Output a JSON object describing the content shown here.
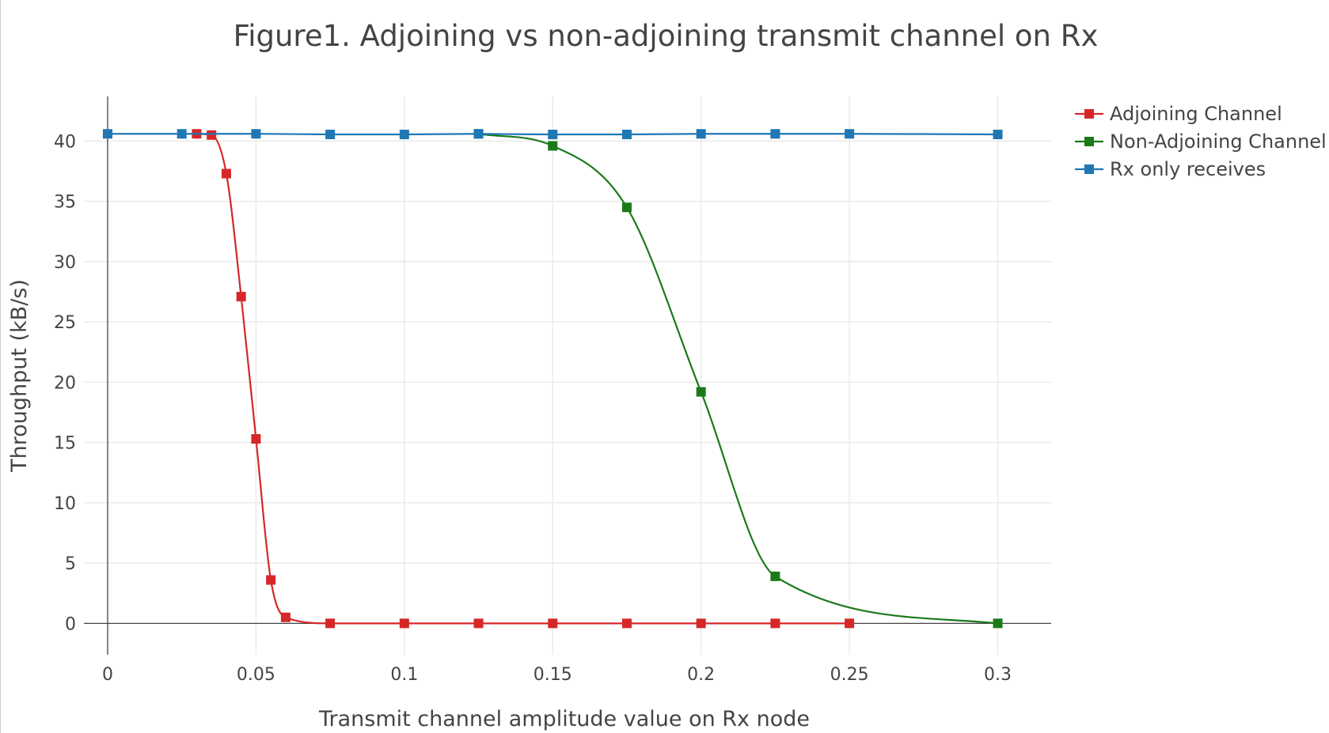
{
  "chart_data": {
    "type": "line",
    "title": "Figure1. Adjoining vs non-adjoining transmit channel on Rx",
    "xlabel": "Transmit channel amplitude value on Rx node",
    "ylabel": "Throughput (kB/s)",
    "xlim": [
      -0.008,
      0.318
    ],
    "ylim": [
      -2.6,
      43.7
    ],
    "xticks": [
      0,
      0.05,
      0.1,
      0.15,
      0.2,
      0.25,
      0.3
    ],
    "xtick_labels": [
      "0",
      "0.05",
      "0.1",
      "0.15",
      "0.2",
      "0.25",
      "0.3"
    ],
    "yticks": [
      0,
      5,
      10,
      15,
      20,
      25,
      30,
      35,
      40
    ],
    "ytick_labels": [
      "0",
      "5",
      "10",
      "15",
      "20",
      "25",
      "30",
      "35",
      "40"
    ],
    "grid": true,
    "legend_position": "top-right",
    "series": [
      {
        "name": "Adjoining Channel",
        "color": "#d62728",
        "x": [
          0.03,
          0.035,
          0.04,
          0.045,
          0.05,
          0.055,
          0.06,
          0.075,
          0.1,
          0.125,
          0.15,
          0.175,
          0.2,
          0.225,
          0.25
        ],
        "y": [
          40.6,
          40.5,
          37.3,
          27.1,
          15.3,
          3.6,
          0.5,
          0,
          0,
          0,
          0,
          0,
          0,
          0,
          0
        ]
      },
      {
        "name": "Non-Adjoining Channel",
        "color": "#1a7a1a",
        "x": [
          0.125,
          0.15,
          0.175,
          0.2,
          0.225,
          0.3
        ],
        "y": [
          40.6,
          39.6,
          34.5,
          19.2,
          3.9,
          0
        ]
      },
      {
        "name": "Rx only receives",
        "color": "#1f77b4",
        "x": [
          0,
          0.025,
          0.05,
          0.075,
          0.1,
          0.125,
          0.15,
          0.175,
          0.2,
          0.225,
          0.25,
          0.3
        ],
        "y": [
          40.6,
          40.6,
          40.6,
          40.55,
          40.55,
          40.6,
          40.55,
          40.55,
          40.6,
          40.6,
          40.6,
          40.55
        ]
      }
    ]
  }
}
